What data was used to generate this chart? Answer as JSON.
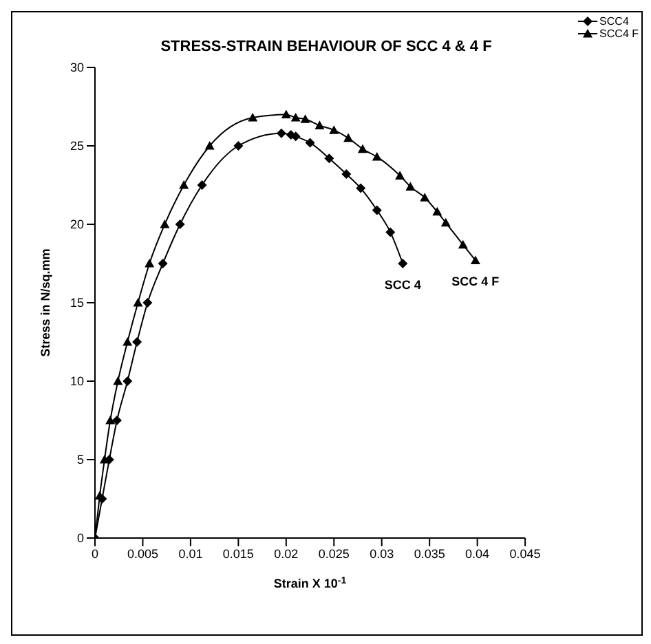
{
  "chart_data": {
    "type": "line",
    "title": "STRESS-STRAIN BEHAVIOUR OF SCC 4 & 4 F",
    "xlabel": "Strain X 10$^{-1}$",
    "ylabel": "Stress in N/sq.mm",
    "xlim": [
      0,
      0.045
    ],
    "xticks": [
      0,
      0.005,
      0.01,
      0.015,
      0.02,
      0.025,
      0.03,
      0.035,
      0.04,
      0.045
    ],
    "ylim": [
      0,
      30
    ],
    "yticks": [
      0,
      5,
      10,
      15,
      20,
      25,
      30
    ],
    "grid": false,
    "legend": "top right",
    "line_style": "solid",
    "series": [
      {
        "name": "SCC4",
        "color": "#000000",
        "marker": "diamond",
        "x": [
          0,
          0.00075,
          0.0015,
          0.0023,
          0.0034,
          0.0044,
          0.0055,
          0.0071,
          0.0089,
          0.0112,
          0.015,
          0.0195,
          0.0205,
          0.021,
          0.0225,
          0.0245,
          0.0263,
          0.0278,
          0.0295,
          0.0309,
          0.0322
        ],
        "values": [
          0,
          2.5,
          5,
          7.5,
          10,
          12.5,
          15,
          17.5,
          20,
          22.5,
          25,
          25.8,
          25.7,
          25.6,
          25.2,
          24.2,
          23.2,
          22.3,
          20.9,
          19.5,
          17.5
        ]
      },
      {
        "name": "SCC4 F",
        "color": "#000000",
        "marker": "triangle",
        "x": [
          0,
          0.0005,
          0.001,
          0.0016,
          0.0024,
          0.0034,
          0.0045,
          0.0057,
          0.0073,
          0.0093,
          0.012,
          0.0165,
          0.02,
          0.021,
          0.022,
          0.0235,
          0.025,
          0.0265,
          0.028,
          0.0295,
          0.0319,
          0.033,
          0.0345,
          0.0358,
          0.0367,
          0.0385,
          0.0398
        ],
        "values": [
          0,
          2.7,
          5,
          7.5,
          10,
          12.5,
          15,
          17.5,
          20,
          22.5,
          25,
          26.8,
          27,
          26.8,
          26.7,
          26.3,
          26,
          25.5,
          24.8,
          24.3,
          23.1,
          22.4,
          21.7,
          20.8,
          20.1,
          18.7,
          17.7
        ]
      }
    ],
    "annotations": [
      {
        "text": "SCC 4",
        "x": 0.0322,
        "y": 17.5
      },
      {
        "text": "SCC 4 F",
        "x": 0.0398,
        "y": 17.7
      }
    ]
  }
}
